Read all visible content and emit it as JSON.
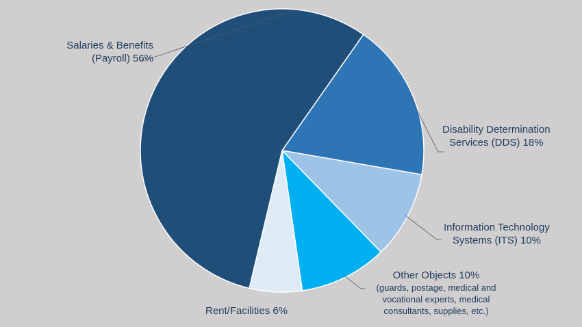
{
  "chart_data": {
    "type": "pie",
    "slices": [
      {
        "label_lines": [
          "Salaries & Benefits",
          "(Payroll) 56%"
        ],
        "value": 56,
        "color": "#1f4e79"
      },
      {
        "label_lines": [
          "Disability Determination",
          "Services (DDS) 18%"
        ],
        "value": 18,
        "color": "#2e75b6"
      },
      {
        "label_lines": [
          "Information Technology",
          "Systems (ITS) 10%"
        ],
        "value": 10,
        "color": "#9dc3e6"
      },
      {
        "label_lines": [
          "Other Objects 10%"
        ],
        "note_lines": [
          "(guards, postage, medical and",
          "vocational experts, medical",
          "consultants, supplies, etc.)"
        ],
        "value": 10,
        "color": "#00b0f0"
      },
      {
        "label_lines": [
          "Rent/Facilities 6%"
        ],
        "value": 6,
        "color": "#deebf7"
      }
    ]
  }
}
